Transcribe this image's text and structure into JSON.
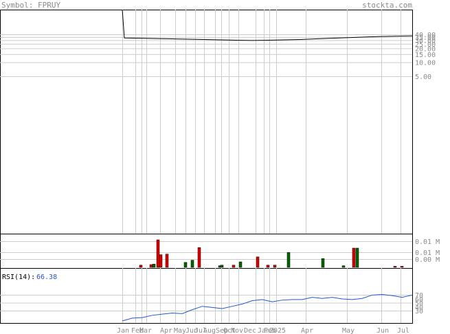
{
  "header": {
    "symbol_label": "Symbol: FPRUY",
    "site": "stockta.com"
  },
  "chart_data": [
    {
      "type": "line",
      "title": "",
      "scale": "log",
      "yticks": [
        "40.00",
        "35.00",
        "30.00",
        "25.00",
        "20.00",
        "15.00",
        "10.00",
        "5.00"
      ],
      "x_categories": [
        "Jan",
        "Feb",
        "Mar",
        "Apr",
        "May",
        "Jun",
        "Jul",
        "Aug",
        "Sep",
        "Oct",
        "Nov",
        "Dec",
        "Jan",
        "Feb",
        "2025",
        "Apr",
        "May",
        "Jun",
        "Jul"
      ],
      "series": [
        {
          "values": [
            33.5,
            33.0,
            32.5,
            32.0,
            31.5,
            31.0,
            30.5,
            30.0,
            29.5,
            30.0,
            30.5,
            31.0,
            32.0,
            33.0,
            34.0,
            35.0,
            36.0,
            36.5,
            37.0
          ]
        }
      ]
    },
    {
      "type": "bar",
      "title": "",
      "yticks": [
        "0.01 M",
        "0.01 M",
        "0.00 M"
      ],
      "bars": [
        {
          "color": "red",
          "v": 0.08
        },
        {
          "color": "red",
          "v": 0.1
        },
        {
          "color": "green",
          "v": 0.12
        },
        {
          "color": "red",
          "v": 1.0
        },
        {
          "color": "red",
          "v": 0.46
        },
        {
          "color": "red",
          "v": 0.48
        },
        {
          "color": "green",
          "v": 0.18
        },
        {
          "color": "green",
          "v": 0.26
        },
        {
          "color": "red",
          "v": 0.72
        },
        {
          "color": "green",
          "v": 0.06
        },
        {
          "color": "green",
          "v": 0.08
        },
        {
          "color": "red",
          "v": 0.08
        },
        {
          "color": "green",
          "v": 0.2
        },
        {
          "color": "red",
          "v": 0.38
        },
        {
          "color": "red",
          "v": 0.08
        },
        {
          "color": "red",
          "v": 0.08
        },
        {
          "color": "green",
          "v": 0.54
        },
        {
          "color": "green",
          "v": 0.32
        },
        {
          "color": "green",
          "v": 0.06
        },
        {
          "color": "red",
          "v": 0.7
        },
        {
          "color": "green",
          "v": 0.7
        },
        {
          "color": "red",
          "v": 0.04
        },
        {
          "color": "red",
          "v": 0.04
        }
      ]
    },
    {
      "type": "line",
      "title": "RSI(14)",
      "current_value": "66.38",
      "yticks": [
        "70",
        "60",
        "50",
        "40",
        "30"
      ],
      "values": [
        20,
        25,
        26,
        30,
        32,
        34,
        33,
        40,
        46,
        44,
        42,
        46,
        50,
        56,
        58,
        54,
        57,
        58,
        58,
        62,
        60,
        62,
        59,
        58,
        60,
        66,
        67,
        65,
        62,
        66
      ]
    }
  ]
}
